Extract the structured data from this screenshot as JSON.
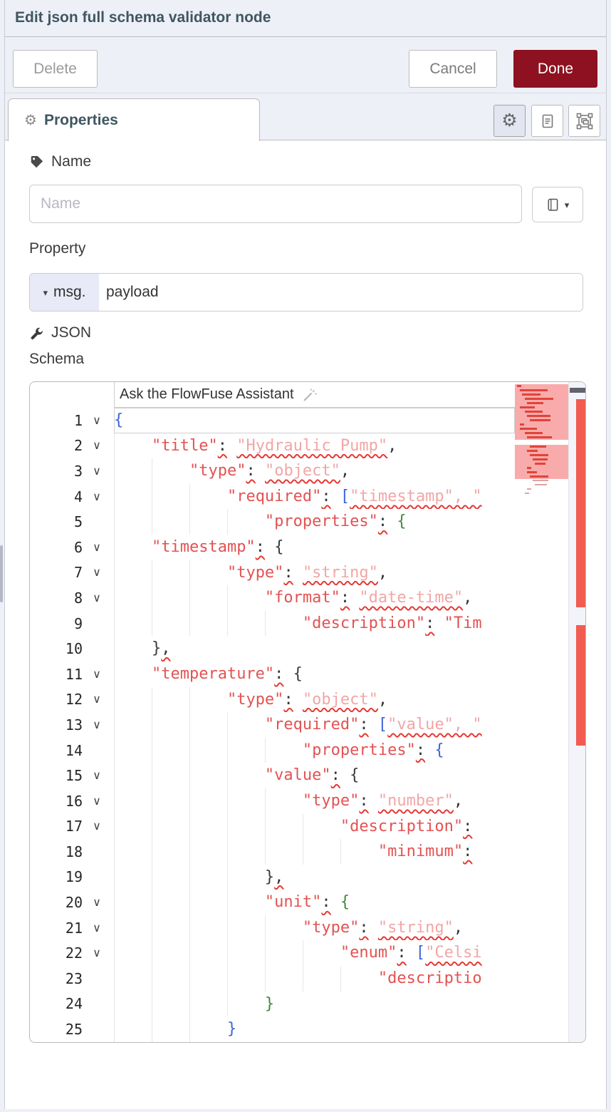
{
  "header": {
    "title": "Edit json full schema validator node"
  },
  "toolbar": {
    "delete_label": "Delete",
    "cancel_label": "Cancel",
    "done_label": "Done",
    "done_color": "#8d1120"
  },
  "tab_bar": {
    "properties_label": "Properties",
    "icon_buttons": [
      {
        "name": "node-properties",
        "icon": "gear-icon",
        "active": true
      },
      {
        "name": "node-description",
        "icon": "document-icon",
        "active": false
      },
      {
        "name": "node-appearance",
        "icon": "appearance-icon",
        "active": false
      }
    ]
  },
  "form": {
    "name_label": "Name",
    "name_placeholder": "Name",
    "property_label": "Property",
    "property_prefix": "msg.",
    "property_value": "payload",
    "json_label": "JSON",
    "schema_label": "Schema"
  },
  "editor": {
    "assistant_label": "Ask the FlowFuse Assistant",
    "syntax_colors": {
      "key": "#e35252",
      "string_value": "#f2a6a6",
      "error_squiggle": "#e53935",
      "brace_blue": "#3e63dd",
      "brace_green": "#3f8b3f",
      "brace_dark": "#3b3b3b"
    },
    "lines": [
      {
        "n": 1,
        "fold": true,
        "current": true,
        "indent": 0,
        "tokens": [
          [
            "bb",
            "{"
          ]
        ]
      },
      {
        "n": 2,
        "fold": true,
        "indent": 4,
        "tokens": [
          [
            "k",
            "\"title\""
          ],
          [
            "cq",
            ":"
          ],
          [
            "p",
            " "
          ],
          [
            "s",
            "\"Hydraulic Pump\""
          ],
          [
            "p",
            ","
          ]
        ]
      },
      {
        "n": 3,
        "fold": true,
        "indent": 8,
        "tokens": [
          [
            "k",
            "\"type\""
          ],
          [
            "cq",
            ":"
          ],
          [
            "p",
            " "
          ],
          [
            "s",
            "\"object\""
          ],
          [
            "p",
            ","
          ]
        ]
      },
      {
        "n": 4,
        "fold": true,
        "indent": 12,
        "tokens": [
          [
            "k",
            "\"required\""
          ],
          [
            "cq",
            ":"
          ],
          [
            "p",
            " "
          ],
          [
            "bb",
            "["
          ],
          [
            "s",
            "\"timestamp\", \""
          ]
        ]
      },
      {
        "n": 5,
        "fold": false,
        "indent": 16,
        "tokens": [
          [
            "k",
            "\"properties\""
          ],
          [
            "cq",
            ":"
          ],
          [
            "p",
            " "
          ],
          [
            "bg",
            "{"
          ]
        ]
      },
      {
        "n": 6,
        "fold": true,
        "indent": 4,
        "tokens": [
          [
            "k",
            "\"timestamp\""
          ],
          [
            "cq",
            ":"
          ],
          [
            "p",
            " "
          ],
          [
            "bd",
            "{"
          ]
        ]
      },
      {
        "n": 7,
        "fold": true,
        "indent": 12,
        "tokens": [
          [
            "k",
            "\"type\""
          ],
          [
            "cq",
            ":"
          ],
          [
            "p",
            " "
          ],
          [
            "s",
            "\"string\""
          ],
          [
            "p",
            ","
          ]
        ]
      },
      {
        "n": 8,
        "fold": true,
        "indent": 16,
        "tokens": [
          [
            "k",
            "\"format\""
          ],
          [
            "cq",
            ":"
          ],
          [
            "p",
            " "
          ],
          [
            "s",
            "\"date-time\""
          ],
          [
            "p",
            ","
          ]
        ]
      },
      {
        "n": 9,
        "fold": false,
        "indent": 20,
        "tokens": [
          [
            "k",
            "\"description\""
          ],
          [
            "cq",
            ":"
          ],
          [
            "p",
            " "
          ],
          [
            "k",
            "\"Tim"
          ]
        ]
      },
      {
        "n": 10,
        "fold": false,
        "indent": 4,
        "tokens": [
          [
            "bd",
            "}"
          ],
          [
            "ws",
            ","
          ]
        ]
      },
      {
        "n": 11,
        "fold": true,
        "indent": 4,
        "tokens": [
          [
            "k",
            "\"temperature\""
          ],
          [
            "cq",
            ":"
          ],
          [
            "p",
            " "
          ],
          [
            "bd",
            "{"
          ]
        ]
      },
      {
        "n": 12,
        "fold": true,
        "indent": 12,
        "tokens": [
          [
            "k",
            "\"type\""
          ],
          [
            "cq",
            ":"
          ],
          [
            "p",
            " "
          ],
          [
            "s",
            "\"object\""
          ],
          [
            "p",
            ","
          ]
        ]
      },
      {
        "n": 13,
        "fold": true,
        "indent": 16,
        "tokens": [
          [
            "k",
            "\"required\""
          ],
          [
            "cq",
            ":"
          ],
          [
            "p",
            " "
          ],
          [
            "bb",
            "["
          ],
          [
            "s",
            "\"value\", \""
          ]
        ]
      },
      {
        "n": 14,
        "fold": false,
        "indent": 20,
        "tokens": [
          [
            "k",
            "\"properties\""
          ],
          [
            "cq",
            ":"
          ],
          [
            "p",
            " "
          ],
          [
            "bb",
            "{"
          ]
        ]
      },
      {
        "n": 15,
        "fold": true,
        "indent": 16,
        "tokens": [
          [
            "k",
            "\"value\""
          ],
          [
            "cq",
            ":"
          ],
          [
            "p",
            " "
          ],
          [
            "bd",
            "{"
          ]
        ]
      },
      {
        "n": 16,
        "fold": true,
        "indent": 20,
        "tokens": [
          [
            "k",
            "\"type\""
          ],
          [
            "cq",
            ":"
          ],
          [
            "p",
            " "
          ],
          [
            "s",
            "\"number\""
          ],
          [
            "p",
            ","
          ]
        ]
      },
      {
        "n": 17,
        "fold": true,
        "indent": 24,
        "tokens": [
          [
            "k",
            "\"description\""
          ],
          [
            "cq",
            ":"
          ]
        ]
      },
      {
        "n": 18,
        "fold": false,
        "indent": 28,
        "tokens": [
          [
            "k",
            "\"minimum\""
          ],
          [
            "cq",
            ":"
          ]
        ]
      },
      {
        "n": 19,
        "fold": false,
        "indent": 16,
        "tokens": [
          [
            "bd",
            "}"
          ],
          [
            "ws",
            ","
          ]
        ]
      },
      {
        "n": 20,
        "fold": true,
        "indent": 16,
        "tokens": [
          [
            "k",
            "\"unit\""
          ],
          [
            "cq",
            ":"
          ],
          [
            "p",
            " "
          ],
          [
            "bg",
            "{"
          ]
        ]
      },
      {
        "n": 21,
        "fold": true,
        "indent": 20,
        "tokens": [
          [
            "k",
            "\"type\""
          ],
          [
            "cq",
            ":"
          ],
          [
            "p",
            " "
          ],
          [
            "s",
            "\"string\""
          ],
          [
            "p",
            ","
          ]
        ]
      },
      {
        "n": 22,
        "fold": true,
        "indent": 24,
        "tokens": [
          [
            "k",
            "\"enum\""
          ],
          [
            "cq",
            ":"
          ],
          [
            "p",
            " "
          ],
          [
            "bb",
            "["
          ],
          [
            "s",
            "\"Celsi"
          ]
        ]
      },
      {
        "n": 23,
        "fold": false,
        "indent": 28,
        "tokens": [
          [
            "k",
            "\"descriptio"
          ]
        ]
      },
      {
        "n": 24,
        "fold": false,
        "indent": 16,
        "tokens": [
          [
            "bg",
            "}"
          ]
        ]
      },
      {
        "n": 25,
        "fold": false,
        "indent": 12,
        "tokens": [
          [
            "bb",
            "}"
          ]
        ]
      }
    ]
  }
}
